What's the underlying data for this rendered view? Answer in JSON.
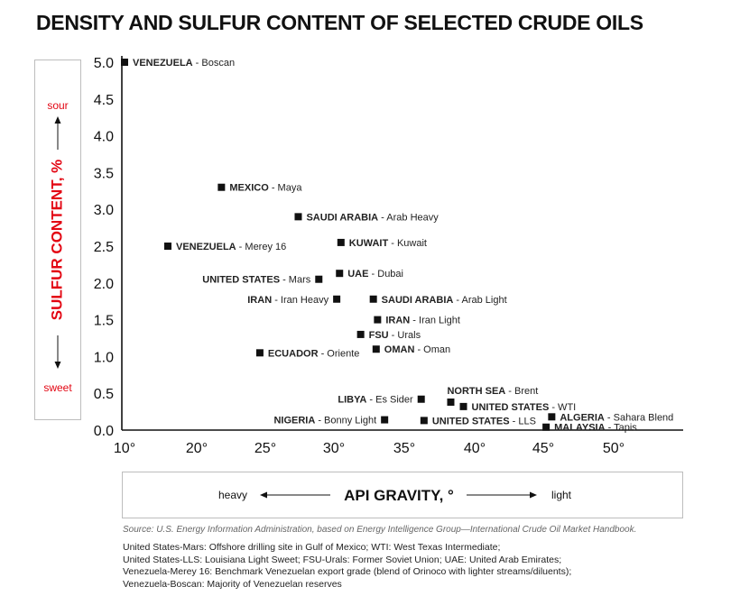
{
  "chart_data": {
    "type": "scatter",
    "title": "DENSITY AND SULFUR CONTENT OF SELECTED CRUDE OILS",
    "xlabel": "API GRAVITY, °",
    "ylabel": "SULFUR CONTENT, %",
    "x_left_hint": "heavy",
    "x_right_hint": "light",
    "y_top_hint": "sour",
    "y_bottom_hint": "sweet",
    "xlim": [
      10,
      50
    ],
    "ylim": [
      0,
      5
    ],
    "x_ticks": [
      "10°",
      "20°",
      "25°",
      "30°",
      "35°",
      "40°",
      "45°",
      "50°"
    ],
    "x_tick_values": [
      10,
      20,
      25,
      30,
      35,
      40,
      45,
      50
    ],
    "y_ticks": [
      "5.0",
      "4.5",
      "4.0",
      "3.5",
      "3.0",
      "2.5",
      "2.0",
      "1.5",
      "1.0",
      "0.5",
      "0.0"
    ],
    "y_tick_values": [
      5.0,
      4.5,
      4.0,
      3.5,
      3.0,
      2.5,
      2.0,
      1.5,
      1.0,
      0.5,
      0.0
    ],
    "points": [
      {
        "country": "VENEZUELA",
        "crude": "Boscan",
        "x": 10.0,
        "y": 5.0,
        "label_side": "right"
      },
      {
        "country": "MEXICO",
        "crude": "Maya",
        "x": 21.8,
        "y": 3.3,
        "label_side": "right"
      },
      {
        "country": "SAUDI ARABIA",
        "crude": "Arab Heavy",
        "x": 27.4,
        "y": 2.9,
        "label_side": "right"
      },
      {
        "country": "VENEZUELA",
        "crude": "Merey 16",
        "x": 16.0,
        "y": 2.5,
        "label_side": "right"
      },
      {
        "country": "KUWAIT",
        "crude": "Kuwait",
        "x": 30.5,
        "y": 2.55,
        "label_side": "right"
      },
      {
        "country": "UNITED STATES",
        "crude": "Mars",
        "x": 28.9,
        "y": 2.05,
        "label_side": "left"
      },
      {
        "country": "UAE",
        "crude": "Dubai",
        "x": 30.4,
        "y": 2.13,
        "label_side": "right"
      },
      {
        "country": "IRAN",
        "crude": "Iran Heavy",
        "x": 30.2,
        "y": 1.78,
        "label_side": "left"
      },
      {
        "country": "SAUDI ARABIA",
        "crude": "Arab Light",
        "x": 32.8,
        "y": 1.78,
        "label_side": "right"
      },
      {
        "country": "IRAN",
        "crude": "Iran Light",
        "x": 33.1,
        "y": 1.5,
        "label_side": "right"
      },
      {
        "country": "FSU",
        "crude": "Urals",
        "x": 31.9,
        "y": 1.3,
        "label_side": "right"
      },
      {
        "country": "ECUADOR",
        "crude": "Oriente",
        "x": 24.6,
        "y": 1.05,
        "label_side": "right"
      },
      {
        "country": "OMAN",
        "crude": "Oman",
        "x": 33.0,
        "y": 1.1,
        "label_side": "right"
      },
      {
        "country": "NORTH SEA",
        "crude": "Brent",
        "x": 38.3,
        "y": 0.38,
        "label_side": "above"
      },
      {
        "country": "LIBYA",
        "crude": "Es Sider",
        "x": 36.2,
        "y": 0.42,
        "label_side": "left"
      },
      {
        "country": "UNITED STATES",
        "crude": "WTI",
        "x": 39.2,
        "y": 0.32,
        "label_side": "right"
      },
      {
        "country": "NIGERIA",
        "crude": "Bonny Light",
        "x": 33.6,
        "y": 0.14,
        "label_side": "left"
      },
      {
        "country": "UNITED STATES",
        "crude": "LLS",
        "x": 36.4,
        "y": 0.13,
        "label_side": "right"
      },
      {
        "country": "ALGERIA",
        "crude": "Sahara Blend",
        "x": 45.6,
        "y": 0.18,
        "label_side": "right"
      },
      {
        "country": "MALAYSIA",
        "crude": "Tapis",
        "x": 45.2,
        "y": 0.04,
        "label_side": "right"
      }
    ]
  },
  "footer": {
    "source": "Source: U.S. Energy Information Administration, based on Energy Intelligence Group—International Crude Oil Market Handbook.",
    "notes": [
      "United States-Mars: Offshore drilling site in Gulf of Mexico; WTI: West Texas Intermediate;",
      "United States-LLS: Louisiana Light Sweet; FSU-Urals: Former Soviet Union; UAE: United Arab Emirates;",
      "Venezuela-Merey 16: Benchmark Venezuelan export grade (blend of Orinoco with lighter streams/diluents);",
      "Venezuela-Boscan: Majority of Venezuelan reserves"
    ]
  },
  "colors": {
    "accent": "#e30613",
    "text": "#111111",
    "marker": "#111111",
    "box_border": "#bdbdbd"
  }
}
